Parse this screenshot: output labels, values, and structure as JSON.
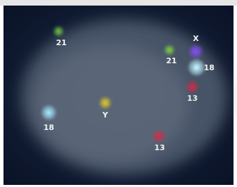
{
  "labels": [
    "21",
    "21",
    "X",
    "18",
    "13",
    "Y",
    "18",
    "13"
  ]
}
